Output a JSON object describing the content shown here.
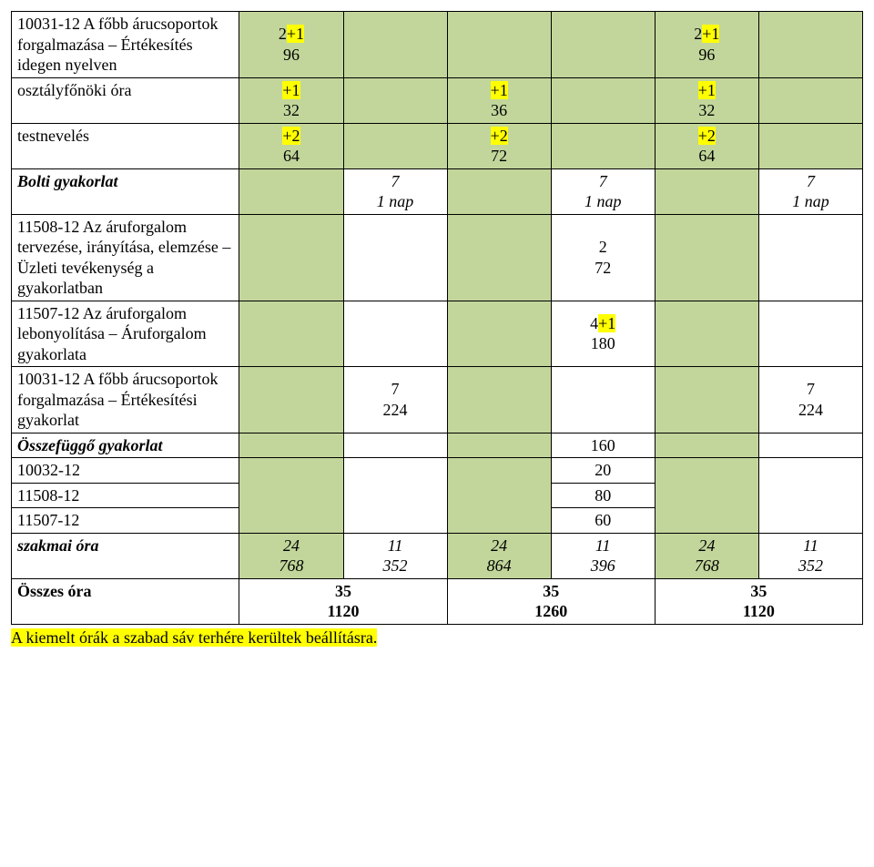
{
  "colors": {
    "green_cell": "#c2d69b",
    "highlight": "#ffff00",
    "border": "#000000",
    "background": "#ffffff",
    "text": "#000000"
  },
  "typography": {
    "font_family": "Times New Roman",
    "base_font_size_pt": 14
  },
  "labels": {
    "r0": "10031-12  A főbb árucsoportok forgalmazása – Értékesítés idegen nyelven",
    "r1": "osztályfőnöki óra",
    "r2": "testnevelés",
    "r3": "Bolti gyakorlat",
    "r4": "11508-12 Az áruforgalom tervezése, irányítása, elemzése – Üzleti tevékenység a gyakorlatban",
    "r5": "11507-12 Az áruforgalom lebonyolítása – Áruforgalom gyakorlata",
    "r6": "10031-12  A főbb árucsoportok forgalmazása – Értékesítési gyakorlat",
    "r7": "Összefüggő gyakorlat",
    "r8": "10032-12",
    "r9": "11508-12",
    "r10": "11507-12",
    "r11": "szakmai óra",
    "r12": "Összes óra"
  },
  "r0": {
    "c0a": "2",
    "c0p": "+1",
    "c0b": "96",
    "c4a": "2",
    "c4p": "+1",
    "c4b": "96"
  },
  "r1": {
    "c0a": "+1",
    "c0b": "32",
    "c2a": "+1",
    "c2b": "36",
    "c4a": "+1",
    "c4b": "32"
  },
  "r2": {
    "c0a": "+2",
    "c0b": "64",
    "c2a": "+2",
    "c2b": "72",
    "c4a": "+2",
    "c4b": "64"
  },
  "r3": {
    "c1a": "7",
    "c1b": "1 nap",
    "c3a": "7",
    "c3b": "1 nap",
    "c5a": "7",
    "c5b": "1 nap"
  },
  "r4": {
    "c3a": "2",
    "c3b": "72"
  },
  "r5": {
    "c3a": "4",
    "c3p": "+1",
    "c3b": "180"
  },
  "r6": {
    "c1a": "7",
    "c1b": "224",
    "c5a": "7",
    "c5b": "224"
  },
  "r7": {
    "c3": "160"
  },
  "r8": {
    "c3": "20"
  },
  "r9": {
    "c3": "80"
  },
  "r10": {
    "c3": "60"
  },
  "r11": {
    "c0a": "24",
    "c0b": "768",
    "c1a": "11",
    "c1b": "352",
    "c2a": "24",
    "c2b": "864",
    "c3a": "11",
    "c3b": "396",
    "c4a": "24",
    "c4b": "768",
    "c5a": "11",
    "c5b": "352"
  },
  "r12": {
    "g0a": "35",
    "g0b": "1120",
    "g1a": "35",
    "g1b": "1260",
    "g2a": "35",
    "g2b": "1120"
  },
  "footnote": "A kiemelt órák a szabad sáv terhére kerültek beállításra."
}
